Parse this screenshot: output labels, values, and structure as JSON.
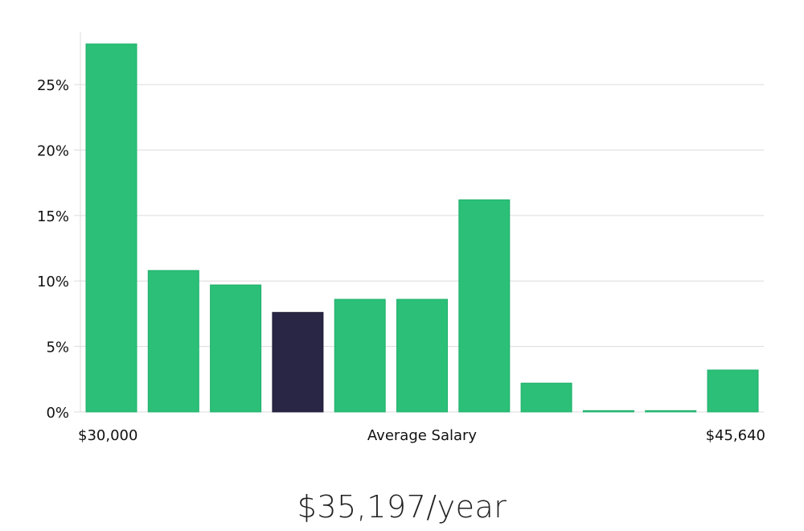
{
  "chart_data": {
    "type": "bar",
    "title": "",
    "xlabel": "Average Salary",
    "ylabel": "",
    "x_min_label": "$30,000",
    "x_max_label": "$45,640",
    "ylim": [
      0,
      29
    ],
    "yticks": [
      0,
      5,
      10,
      15,
      20,
      25
    ],
    "ytick_labels": [
      "0%",
      "5%",
      "10%",
      "15%",
      "20%",
      "25%"
    ],
    "values": [
      28.1,
      10.8,
      9.7,
      7.6,
      8.6,
      8.6,
      16.2,
      2.2,
      0.1,
      0.1,
      3.2
    ],
    "highlight_index": 3,
    "bar_color": "#2bbf78",
    "highlight_color": "#292645",
    "grid": true
  },
  "summary": {
    "salary": "$35,197/year"
  }
}
